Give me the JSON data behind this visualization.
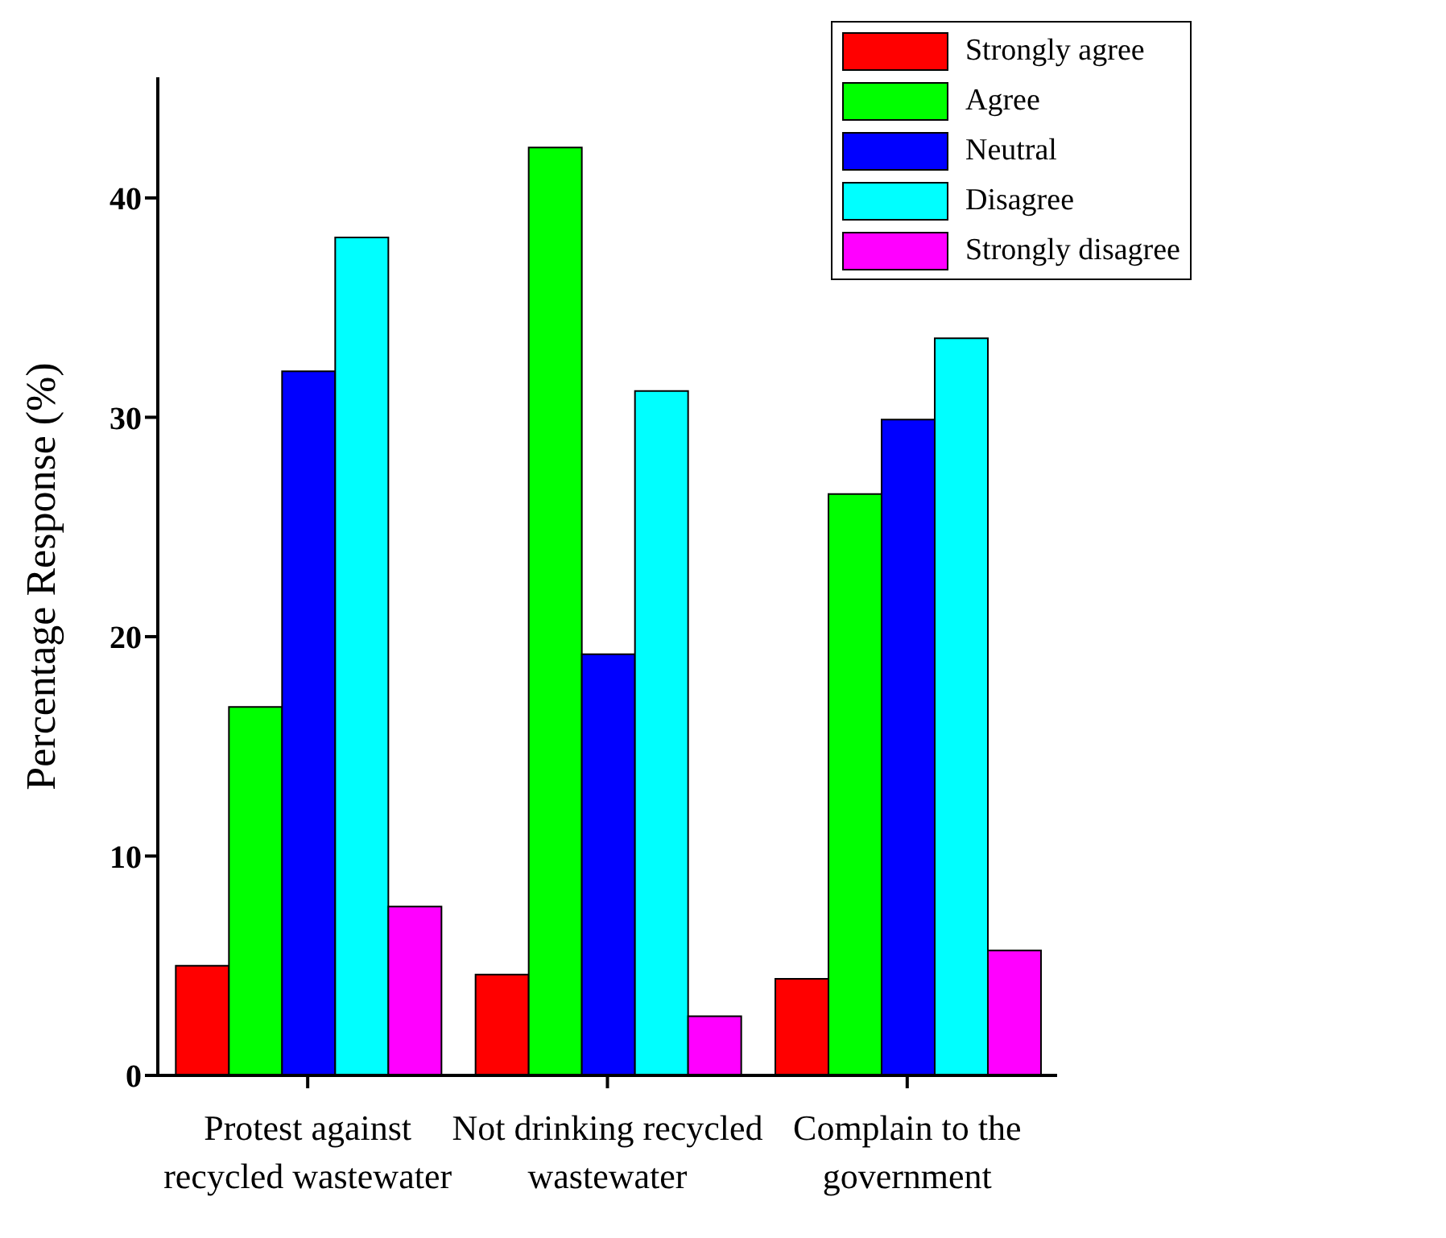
{
  "chart_data": {
    "type": "bar",
    "ylabel": "Percentage Response (%)",
    "categories": [
      "Protest against recycled wastewater",
      "Not drinking recycled wastewater",
      "Complain to the government"
    ],
    "series": [
      {
        "name": "Strongly agree",
        "color": "#ff0000",
        "values": [
          5.0,
          4.6,
          4.4
        ]
      },
      {
        "name": "Agree",
        "color": "#00ff00",
        "values": [
          16.8,
          42.3,
          26.5
        ]
      },
      {
        "name": "Neutral",
        "color": "#0000ff",
        "values": [
          32.1,
          19.2,
          29.9
        ]
      },
      {
        "name": "Disagree",
        "color": "#00ffff",
        "values": [
          38.2,
          31.2,
          33.6
        ]
      },
      {
        "name": "Strongly disagree",
        "color": "#ff00ff",
        "values": [
          7.7,
          2.7,
          5.7
        ]
      }
    ],
    "ylim": [
      0,
      45.5
    ],
    "yticks": [
      0,
      10,
      20,
      30,
      40
    ],
    "grid": false,
    "legend": "top right"
  }
}
